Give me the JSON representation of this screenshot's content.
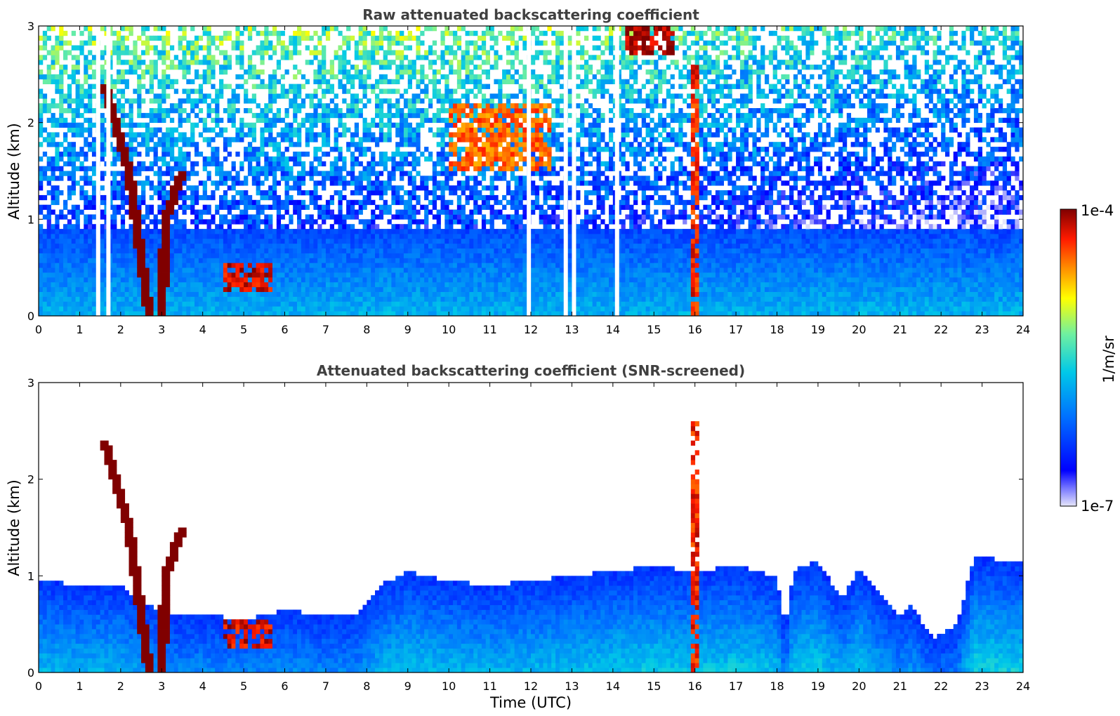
{
  "chart_data": [
    {
      "type": "heatmap",
      "title": "Raw attenuated backscattering coefficient",
      "xlabel": "",
      "ylabel": "Altitude (km)",
      "xlim": [
        0,
        24
      ],
      "ylim": [
        0,
        3
      ],
      "xticks": [
        "0",
        "1",
        "2",
        "3",
        "4",
        "5",
        "6",
        "7",
        "8",
        "9",
        "10",
        "11",
        "12",
        "13",
        "14",
        "15",
        "16",
        "17",
        "18",
        "19",
        "20",
        "21",
        "22",
        "23",
        "24"
      ],
      "yticks": [
        "0",
        "1",
        "2",
        "3"
      ],
      "grid": false,
      "data_gaps_utc": [
        1.4,
        1.65,
        11.9,
        12.8,
        13.0,
        14.05
      ],
      "features": [
        {
          "label": "aerosol layer",
          "x_utc": [
            0,
            24
          ],
          "top_km": 0.9,
          "log10_value": -6.3
        },
        {
          "label": "cloud/plume descending",
          "path": [
            [
              1.6,
              2.4
            ],
            [
              2.2,
              1.5
            ],
            [
              2.7,
              0.0
            ]
          ],
          "log10_value": -4.0
        },
        {
          "label": "cloud/plume ascending",
          "path": [
            [
              3.0,
              0.0
            ],
            [
              3.1,
              1.0
            ],
            [
              3.5,
              1.5
            ]
          ],
          "log10_value": -4.0
        },
        {
          "label": "low cloud",
          "x_utc": [
            4.5,
            5.7
          ],
          "altitude_km": [
            0.25,
            0.55
          ],
          "log10_value": -4.2
        },
        {
          "label": "mid-level cloud",
          "x_utc": [
            10.0,
            12.5
          ],
          "altitude_km": [
            1.5,
            2.2
          ],
          "log10_value": -4.5
        },
        {
          "label": "vertical column",
          "x_utc": [
            15.95,
            16.15
          ],
          "altitude_km": [
            0.0,
            2.6
          ],
          "log10_value": -4.3
        },
        {
          "label": "high cloud",
          "x_utc": [
            14.3,
            15.5
          ],
          "altitude_km": [
            2.7,
            3.0
          ],
          "log10_value": -4.1
        }
      ]
    },
    {
      "type": "heatmap",
      "title": "Attenuated backscattering coefficient (SNR-screened)",
      "xlabel": "Time (UTC)",
      "ylabel": "Altitude (km)",
      "xlim": [
        0,
        24
      ],
      "ylim": [
        0,
        3
      ],
      "xticks": [
        "0",
        "1",
        "2",
        "3",
        "4",
        "5",
        "6",
        "7",
        "8",
        "9",
        "10",
        "11",
        "12",
        "13",
        "14",
        "15",
        "16",
        "17",
        "18",
        "19",
        "20",
        "21",
        "22",
        "23",
        "24"
      ],
      "yticks": [
        "0",
        "1",
        "2",
        "3"
      ],
      "grid": false,
      "signal_top_km": [
        {
          "x": 0.2,
          "y": 0.95
        },
        {
          "x": 1.0,
          "y": 0.9
        },
        {
          "x": 2.0,
          "y": 0.9
        },
        {
          "x": 2.6,
          "y": 0.7
        },
        {
          "x": 3.3,
          "y": 0.6
        },
        {
          "x": 4.0,
          "y": 0.6
        },
        {
          "x": 5.0,
          "y": 0.55
        },
        {
          "x": 6.0,
          "y": 0.65
        },
        {
          "x": 7.0,
          "y": 0.58
        },
        {
          "x": 7.8,
          "y": 0.6
        },
        {
          "x": 8.3,
          "y": 0.9
        },
        {
          "x": 9.0,
          "y": 1.05
        },
        {
          "x": 10.0,
          "y": 0.95
        },
        {
          "x": 11.0,
          "y": 0.9
        },
        {
          "x": 12.0,
          "y": 0.95
        },
        {
          "x": 13.0,
          "y": 1.0
        },
        {
          "x": 14.0,
          "y": 1.05
        },
        {
          "x": 15.0,
          "y": 1.1
        },
        {
          "x": 16.0,
          "y": 1.05
        },
        {
          "x": 17.0,
          "y": 1.1
        },
        {
          "x": 18.0,
          "y": 1.0
        },
        {
          "x": 18.2,
          "y": 0.45
        },
        {
          "x": 18.4,
          "y": 1.05
        },
        {
          "x": 19.0,
          "y": 1.15
        },
        {
          "x": 19.6,
          "y": 0.75
        },
        {
          "x": 20.0,
          "y": 1.1
        },
        {
          "x": 20.5,
          "y": 0.8
        },
        {
          "x": 21.0,
          "y": 0.6
        },
        {
          "x": 21.3,
          "y": 0.7
        },
        {
          "x": 21.8,
          "y": 0.35
        },
        {
          "x": 22.4,
          "y": 0.5
        },
        {
          "x": 22.8,
          "y": 1.2
        },
        {
          "x": 23.8,
          "y": 1.15
        }
      ],
      "features": [
        {
          "label": "cloud/plume descending",
          "path": [
            [
              1.6,
              2.4
            ],
            [
              2.2,
              1.5
            ],
            [
              2.7,
              0.0
            ]
          ],
          "log10_value": -4.0
        },
        {
          "label": "cloud/plume ascending",
          "path": [
            [
              3.0,
              0.0
            ],
            [
              3.1,
              1.0
            ],
            [
              3.5,
              1.5
            ]
          ],
          "log10_value": -4.0
        },
        {
          "label": "low cloud",
          "x_utc": [
            4.5,
            5.7
          ],
          "altitude_km": [
            0.25,
            0.55
          ],
          "log10_value": -4.2
        },
        {
          "label": "vertical column",
          "x_utc": [
            15.95,
            16.15
          ],
          "altitude_km": [
            0.0,
            2.6
          ],
          "log10_value": -4.3
        }
      ]
    }
  ],
  "colorbar": {
    "label": "1/m/sr",
    "top_label": "1e-4",
    "bottom_label": "1e-7",
    "range_log10": [
      -7,
      -4
    ],
    "colors": [
      "#e6e6fa",
      "#0000ff",
      "#0080ff",
      "#00e0e0",
      "#a0f060",
      "#ffff00",
      "#ff8000",
      "#ff0000",
      "#800000"
    ]
  }
}
